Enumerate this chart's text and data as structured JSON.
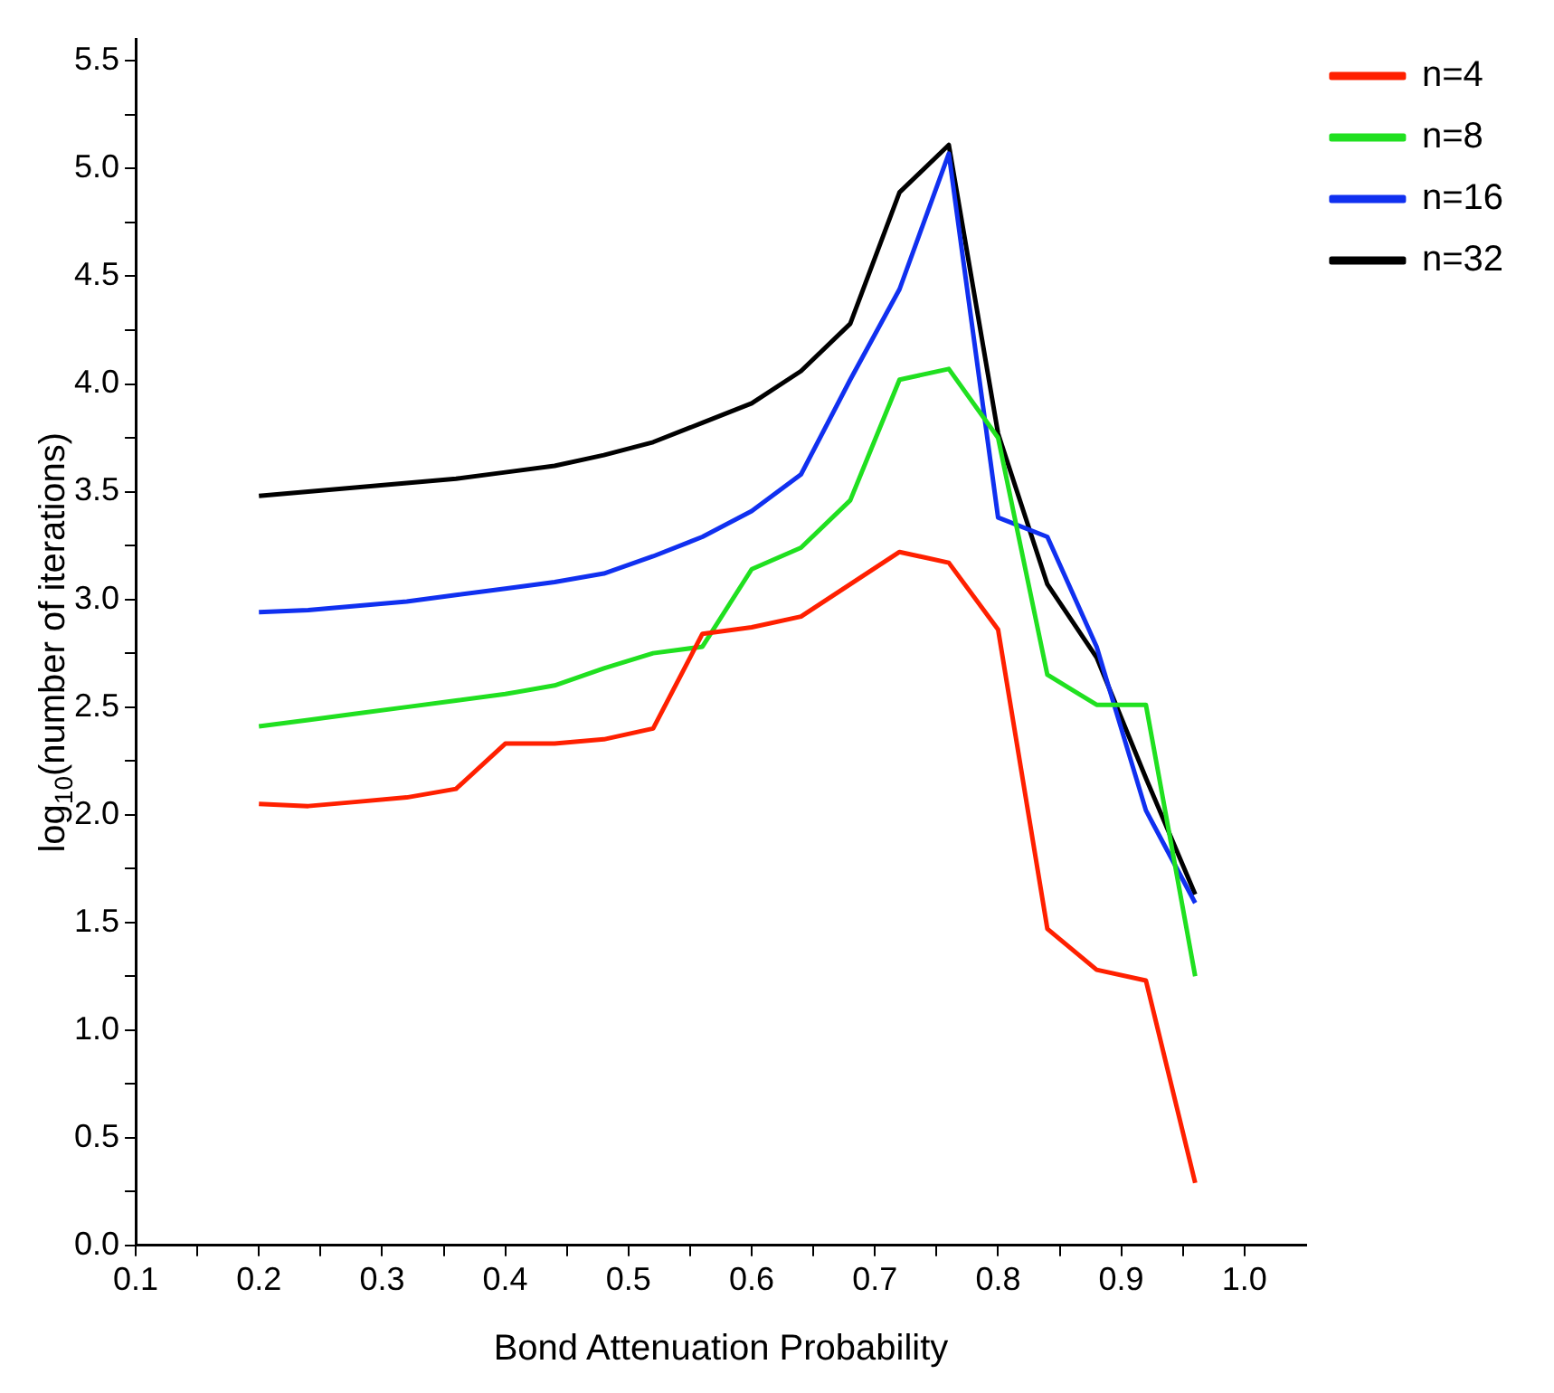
{
  "chart_data": {
    "type": "line",
    "xlabel": "Bond Attenuation Probability",
    "ylabel": "log$_{10}$(number of iterations)",
    "x": [
      0.2,
      0.24,
      0.28,
      0.32,
      0.36,
      0.4,
      0.44,
      0.48,
      0.52,
      0.56,
      0.6,
      0.64,
      0.68,
      0.72,
      0.76,
      0.8,
      0.84,
      0.88,
      0.92,
      0.96
    ],
    "series": [
      {
        "name": "n=4",
        "color": "#ff2000",
        "values": [
          2.05,
          2.04,
          2.06,
          2.08,
          2.12,
          2.33,
          2.33,
          2.35,
          2.4,
          2.84,
          2.87,
          2.92,
          3.07,
          3.22,
          3.17,
          2.86,
          1.47,
          1.28,
          1.23,
          0.29
        ]
      },
      {
        "name": "n=8",
        "color": "#20e020",
        "values": [
          2.41,
          2.44,
          2.47,
          2.5,
          2.53,
          2.56,
          2.6,
          2.68,
          2.75,
          2.78,
          3.14,
          3.24,
          3.46,
          4.02,
          4.07,
          3.75,
          2.65,
          2.51,
          2.51,
          1.25
        ]
      },
      {
        "name": "n=16",
        "color": "#1030f0",
        "values": [
          2.94,
          2.95,
          2.97,
          2.99,
          3.02,
          3.05,
          3.08,
          3.12,
          3.2,
          3.29,
          3.41,
          3.58,
          4.02,
          4.44,
          5.07,
          3.38,
          3.29,
          2.78,
          2.02,
          1.59
        ]
      },
      {
        "name": "n=32",
        "color": "#000000",
        "values": [
          3.48,
          3.5,
          3.52,
          3.54,
          3.56,
          3.59,
          3.62,
          3.67,
          3.73,
          3.82,
          3.91,
          4.06,
          4.28,
          4.89,
          5.11,
          3.77,
          3.07,
          2.73,
          2.17,
          1.63
        ]
      }
    ],
    "xlim": [
      0.1,
      1.05
    ],
    "ylim": [
      0,
      5.6
    ],
    "xticks": [
      {
        "value": 0.1,
        "label": "0.1"
      },
      {
        "value": 0.15,
        "label": null
      },
      {
        "value": 0.2,
        "label": "0.2"
      },
      {
        "value": 0.25,
        "label": null
      },
      {
        "value": 0.3,
        "label": "0.3"
      },
      {
        "value": 0.35,
        "label": null
      },
      {
        "value": 0.4,
        "label": "0.4"
      },
      {
        "value": 0.45,
        "label": null
      },
      {
        "value": 0.5,
        "label": "0.5"
      },
      {
        "value": 0.55,
        "label": null
      },
      {
        "value": 0.6,
        "label": "0.6"
      },
      {
        "value": 0.65,
        "label": null
      },
      {
        "value": 0.7,
        "label": "0.7"
      },
      {
        "value": 0.75,
        "label": null
      },
      {
        "value": 0.8,
        "label": "0.8"
      },
      {
        "value": 0.85,
        "label": null
      },
      {
        "value": 0.9,
        "label": "0.9"
      },
      {
        "value": 0.95,
        "label": null
      },
      {
        "value": 1.0,
        "label": "1.0"
      }
    ],
    "yticks": [
      {
        "value": 0,
        "label": "0.0"
      },
      {
        "value": 0.25,
        "label": null
      },
      {
        "value": 0.5,
        "label": "0.5"
      },
      {
        "value": 0.75,
        "label": null
      },
      {
        "value": 1.0,
        "label": "1.0"
      },
      {
        "value": 1.25,
        "label": null
      },
      {
        "value": 1.5,
        "label": "1.5"
      },
      {
        "value": 1.75,
        "label": null
      },
      {
        "value": 2.0,
        "label": "2.0"
      },
      {
        "value": 2.25,
        "label": null
      },
      {
        "value": 2.5,
        "label": "2.5"
      },
      {
        "value": 2.75,
        "label": null
      },
      {
        "value": 3.0,
        "label": "3.0"
      },
      {
        "value": 3.25,
        "label": null
      },
      {
        "value": 3.5,
        "label": "3.5"
      },
      {
        "value": 3.75,
        "label": null
      },
      {
        "value": 4.0,
        "label": "4.0"
      },
      {
        "value": 4.25,
        "label": null
      },
      {
        "value": 4.5,
        "label": "4.5"
      },
      {
        "value": 4.75,
        "label": null
      },
      {
        "value": 5.0,
        "label": "5.0"
      },
      {
        "value": 5.25,
        "label": null
      },
      {
        "value": 5.5,
        "label": "5.5"
      }
    ],
    "grid": false,
    "legend": "top right",
    "marker": "none",
    "line_style": "solid"
  }
}
